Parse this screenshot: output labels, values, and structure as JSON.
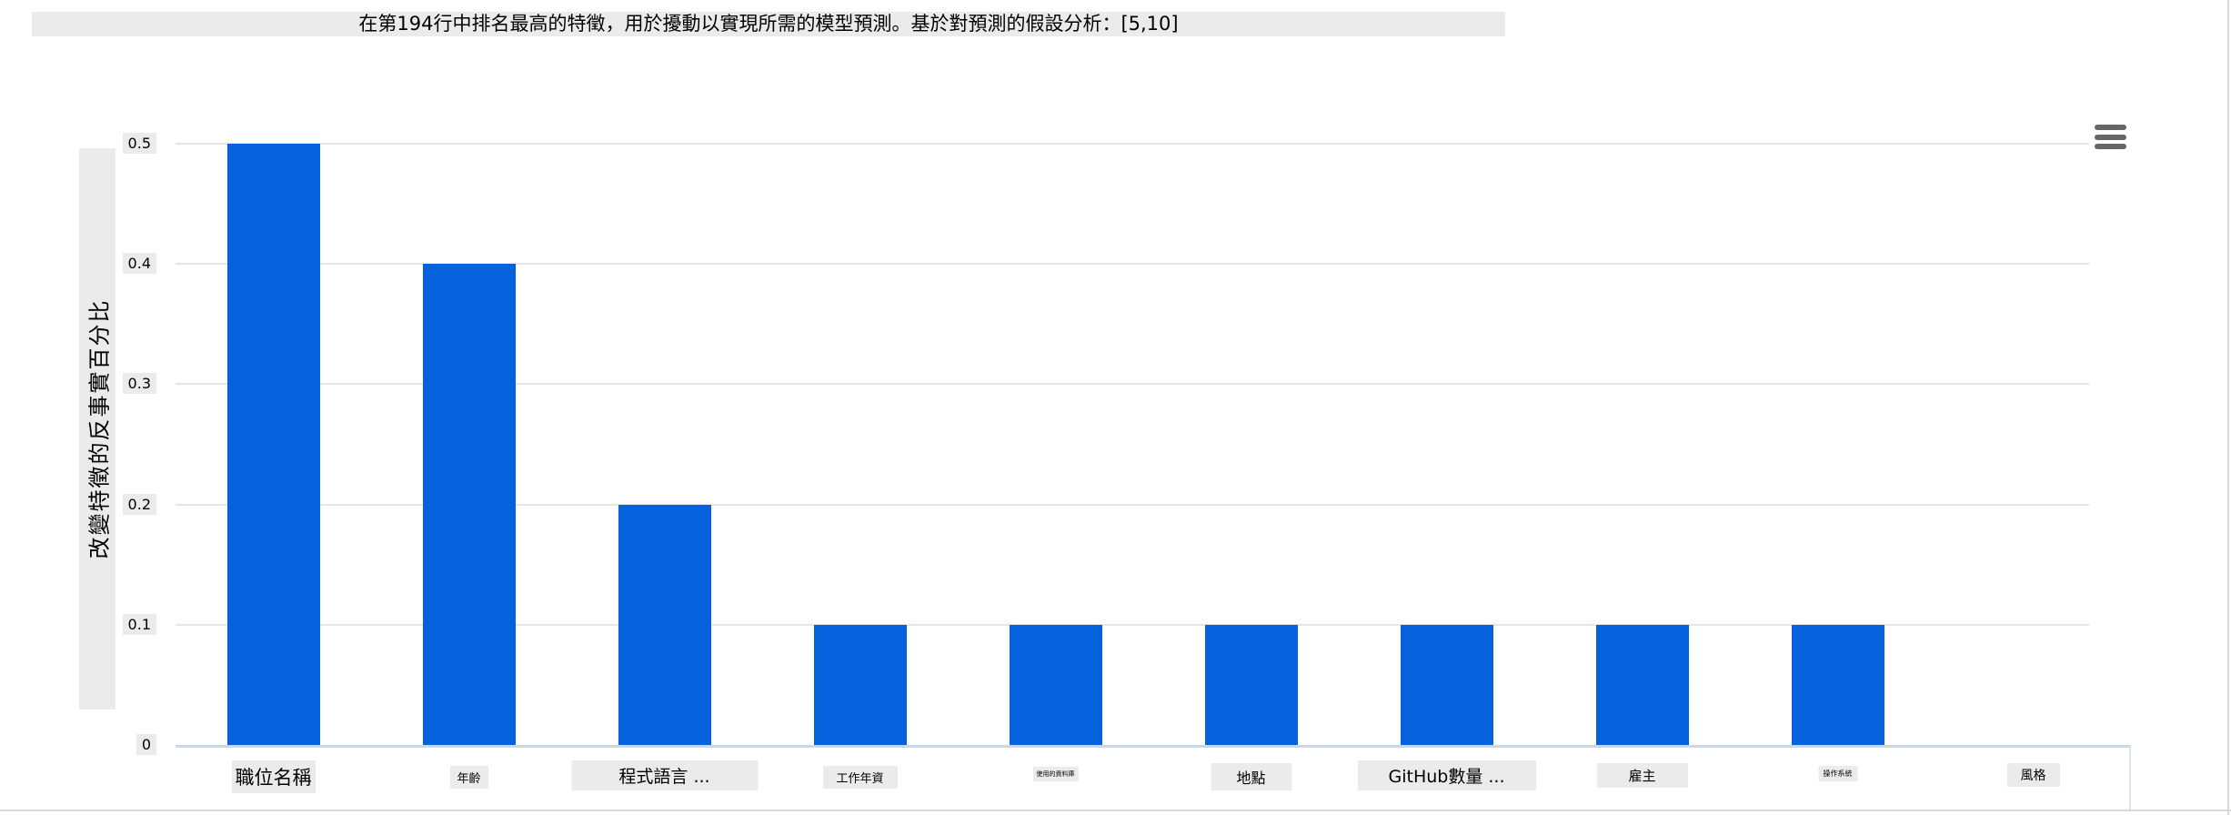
{
  "page": {
    "title": "在第194行中排名最高的特徵，用於擾動以實現所需的模型預測。基於對預測的假設分析：[5,10]"
  },
  "toolbar": {
    "menu_icon": "hamburger-menu"
  },
  "chart_data": {
    "type": "bar",
    "title": "在第194行中排名最高的特徵，用於擾動以實現所需的模型預測。基於對預測的假設分析：[5,10]",
    "xlabel": "",
    "ylabel": "改變特徵的反事實百分比",
    "categories": [
      "職位名稱",
      "年齡",
      "程式語言 ...",
      "工作年資",
      "使用的資料庫",
      "地點",
      "GitHub數量 ...",
      "雇主",
      "操作系統",
      "風格"
    ],
    "values": [
      0.5,
      0.4,
      0.2,
      0.1,
      0.1,
      0.1,
      0.1,
      0.1,
      0.1,
      0
    ],
    "ylim": [
      0,
      0.5
    ],
    "yticks": [
      0,
      0.1,
      0.2,
      0.3,
      0.4,
      0.5
    ],
    "ytick_labels": [
      "0",
      "0.1",
      "0.2",
      "0.3",
      "0.4",
      "0.5"
    ],
    "grid": "horizontal",
    "legend": "none",
    "bar_color": "#0561dc"
  },
  "colors": {
    "bar": "#0561dc",
    "axis_line": "#ccd6eb",
    "gridline": "#e6e6e6",
    "label_background": "#ebebeb",
    "menu_icon": "#666666",
    "border": "#d9d9d9"
  }
}
